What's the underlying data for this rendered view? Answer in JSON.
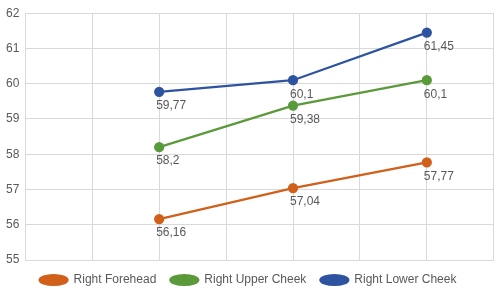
{
  "chart_data": {
    "type": "line",
    "x": [
      2,
      4,
      6
    ],
    "series": [
      {
        "name": "Right Forehead",
        "color": "#d0601a",
        "values": [
          56.16,
          57.04,
          57.77
        ],
        "value_labels": [
          "56,16",
          "57,04",
          "57,77"
        ],
        "marker": "circle"
      },
      {
        "name": "Right Upper Cheek",
        "color": "#5a9a3a",
        "values": [
          58.2,
          59.38,
          60.1
        ],
        "value_labels": [
          "58,2",
          "59,38",
          "60,1"
        ],
        "marker": "circle"
      },
      {
        "name": "Right Lower Cheek",
        "color": "#2e54a1",
        "values": [
          59.77,
          60.1,
          61.45
        ],
        "value_labels": [
          "59,77",
          "60,1",
          "61,45"
        ],
        "marker": "circle"
      }
    ],
    "xlim": [
      0,
      7
    ],
    "xticks": [
      0,
      1,
      2,
      3,
      4,
      5,
      6,
      7
    ],
    "ylim": [
      55,
      62
    ],
    "yticks": [
      55,
      56,
      57,
      58,
      59,
      60,
      61,
      62
    ],
    "grid": true,
    "legend": "bottom",
    "data_labels": true,
    "tick_labels": "y"
  }
}
